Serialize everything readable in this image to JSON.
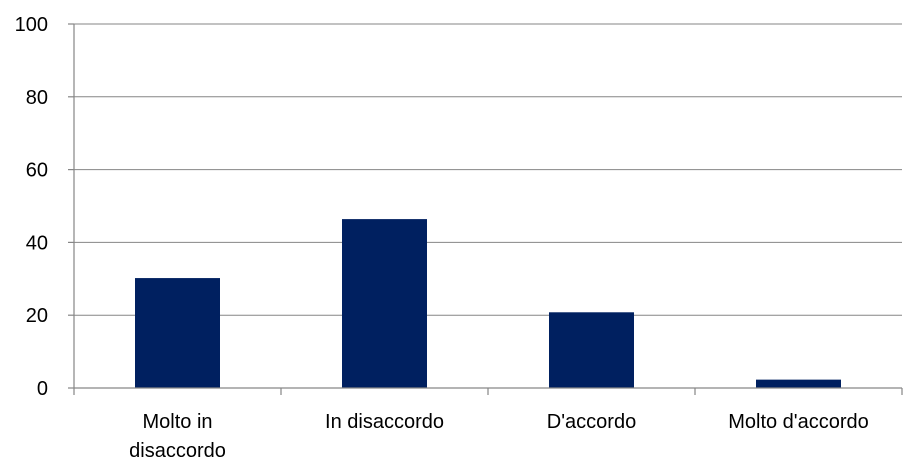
{
  "chart_data": {
    "type": "bar",
    "title": "",
    "xlabel": "",
    "ylabel": "",
    "categories": [
      "Molto in disaccordo",
      "In disaccordo",
      "D'accordo",
      "Molto d'accordo"
    ],
    "category_label_lines": [
      [
        "Molto in",
        "disaccordo"
      ],
      [
        "In disaccordo"
      ],
      [
        "D'accordo"
      ],
      [
        "Molto d'accordo"
      ]
    ],
    "values": [
      30.2,
      46.4,
      20.8,
      2.3
    ],
    "ylim": [
      0,
      100
    ],
    "yticks": [
      0,
      20,
      40,
      60,
      80,
      100
    ],
    "grid": true,
    "legend": "none",
    "bar_color": "#002060"
  }
}
